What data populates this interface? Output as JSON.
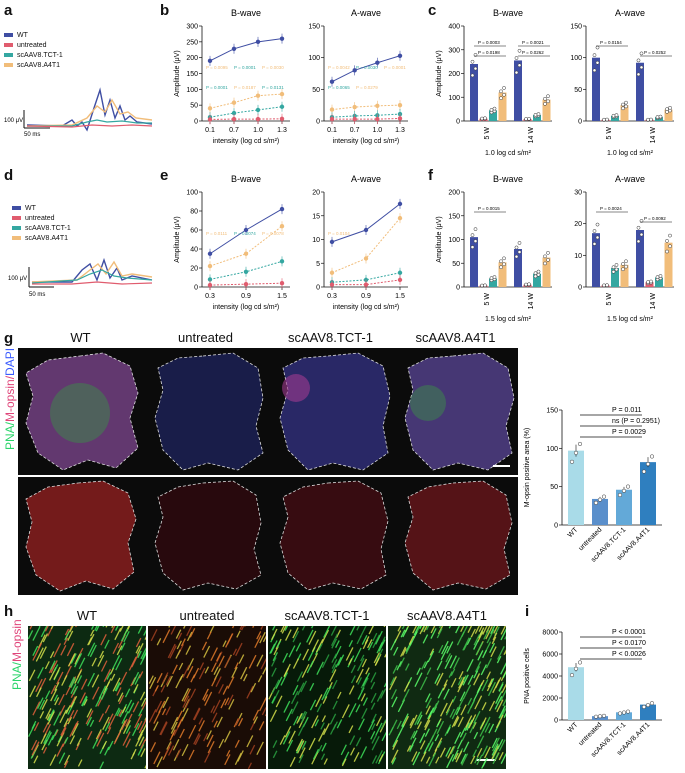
{
  "colors": {
    "wt": "#3f4ea3",
    "untreated": "#e05c6e",
    "tct": "#34a7a1",
    "a4t1": "#f1bd7a",
    "wt_light": "#a9dbe8",
    "untreated_bar": "#5a8fcb",
    "tct_bar": "#63a9d8",
    "a4t1_bar": "#2f7fbf"
  },
  "panels": {
    "a": "a",
    "b": "b",
    "c": "c",
    "d": "d",
    "e": "e",
    "f": "f",
    "g": "g",
    "h": "h",
    "i": "i"
  },
  "legend": [
    "WT",
    "untreated",
    "scAAV8.TCT-1",
    "scAAV8.A4T1"
  ],
  "scale_a": {
    "v": "100 μV",
    "t": "50 ms"
  },
  "scale_d": {
    "v": "100 μV",
    "t": "50 ms"
  },
  "images": {
    "g_cols": [
      "WT",
      "untreated",
      "scAAV8.TCT-1",
      "scAAV8.A4T1"
    ],
    "g_ylabel": [
      "PNA/",
      "M-opsin/",
      "DAPI"
    ],
    "h_cols": [
      "WT",
      "untreated",
      "scAAV8.TCT-1",
      "scAAV8.A4T1"
    ],
    "h_ylabel": [
      "PNA/",
      "M-opsin"
    ]
  },
  "chart_data": [
    {
      "panel": "b-left",
      "type": "line",
      "title": "B-wave",
      "xlabel": "intensity (log cd s/m²)",
      "ylabel": "Amplitude (μV)",
      "x": [
        "0.1",
        "0.7",
        "1.0",
        "1.3"
      ],
      "ylim": [
        0,
        300
      ],
      "yticks": [
        0,
        50,
        100,
        150,
        200,
        250,
        300
      ],
      "series": [
        {
          "name": "WT",
          "values": [
            190,
            228,
            250,
            260
          ]
        },
        {
          "name": "scAAV8.A4T1",
          "values": [
            40,
            58,
            80,
            85
          ]
        },
        {
          "name": "scAAV8.TCT-1",
          "values": [
            12,
            25,
            35,
            45
          ]
        },
        {
          "name": "untreated",
          "values": [
            5,
            6,
            6,
            7
          ]
        }
      ],
      "annotations": [
        "P = 0.0095",
        "P = 0.0001",
        "P = 0.0030",
        "P = 0.0001",
        "P = 0.0187",
        "P = 0.0131"
      ]
    },
    {
      "panel": "b-right",
      "type": "line",
      "title": "A-wave",
      "xlabel": "intensity (log cd s/m²)",
      "x": [
        "0.1",
        "0.7",
        "1.0",
        "1.3"
      ],
      "ylim": [
        0,
        150
      ],
      "yticks": [
        0,
        50,
        100,
        150
      ],
      "series": [
        {
          "name": "WT",
          "values": [
            62,
            80,
            92,
            103
          ]
        },
        {
          "name": "scAAV8.A4T1",
          "values": [
            18,
            22,
            24,
            25
          ]
        },
        {
          "name": "scAAV8.TCT-1",
          "values": [
            6,
            8,
            9,
            11
          ]
        },
        {
          "name": "untreated",
          "values": [
            3,
            3,
            3,
            4
          ]
        }
      ],
      "annotations": [
        "P = 0.0042",
        "P = 0.0030",
        "P = 0.0001",
        "P = 0.0065",
        "P = 0.0279"
      ]
    },
    {
      "panel": "c-left",
      "type": "bar",
      "title": "B-wave",
      "xlabel": "1.0 log cd s/m²",
      "ylabel": "Amplitude (μV)",
      "categories": [
        "5 W",
        "14 W"
      ],
      "ylim": [
        0,
        400
      ],
      "yticks": [
        0,
        100,
        200,
        300,
        400
      ],
      "series": [
        {
          "name": "WT",
          "values": [
            240,
            255
          ]
        },
        {
          "name": "untreated",
          "values": [
            10,
            8
          ]
        },
        {
          "name": "scAAV8.TCT-1",
          "values": [
            45,
            25
          ]
        },
        {
          "name": "scAAV8.A4T1",
          "values": [
            120,
            90
          ]
        }
      ],
      "annotations": [
        "P = 0.0003",
        "P = 0.0198",
        "P = 0.0021",
        "P = 0.0262"
      ]
    },
    {
      "panel": "c-right",
      "type": "bar",
      "title": "A-wave",
      "xlabel": "1.0 log cd s/m²",
      "categories": [
        "5 W",
        "14 W"
      ],
      "ylim": [
        0,
        150
      ],
      "yticks": [
        0,
        50,
        100,
        150
      ],
      "series": [
        {
          "name": "WT",
          "values": [
            100,
            92
          ]
        },
        {
          "name": "untreated",
          "values": [
            2,
            2
          ]
        },
        {
          "name": "scAAV8.TCT-1",
          "values": [
            8,
            6
          ]
        },
        {
          "name": "scAAV8.A4T1",
          "values": [
            25,
            18
          ]
        }
      ],
      "annotations": [
        "P = 0.0154",
        "P = 0.0252"
      ]
    },
    {
      "panel": "e-left",
      "type": "line",
      "title": "B-wave",
      "xlabel": "intensity (log cd s/m²)",
      "ylabel": "Amplitude (μV)",
      "x": [
        "0.3",
        "0.9",
        "1.5"
      ],
      "ylim": [
        0,
        100
      ],
      "yticks": [
        0,
        20,
        40,
        60,
        80,
        100
      ],
      "series": [
        {
          "name": "WT",
          "values": [
            35,
            60,
            82
          ]
        },
        {
          "name": "scAAV8.A4T1",
          "values": [
            22,
            35,
            64
          ]
        },
        {
          "name": "scAAV8.TCT-1",
          "values": [
            8,
            16,
            27
          ]
        },
        {
          "name": "untreated",
          "values": [
            2,
            3,
            4
          ]
        }
      ],
      "annotations": [
        "P = 0.0111",
        "P = 0.0074",
        "P = 0.0078"
      ]
    },
    {
      "panel": "e-right",
      "type": "line",
      "title": "A-wave",
      "xlabel": "intensity (log cd s/m²)",
      "x": [
        "0.3",
        "0.9",
        "1.5"
      ],
      "ylim": [
        0,
        20
      ],
      "yticks": [
        0,
        5,
        10,
        15,
        20
      ],
      "series": [
        {
          "name": "WT",
          "values": [
            9.5,
            12,
            17.5
          ]
        },
        {
          "name": "scAAV8.A4T1",
          "values": [
            3,
            6,
            14.5
          ]
        },
        {
          "name": "scAAV8.TCT-1",
          "values": [
            1,
            1.5,
            3
          ]
        },
        {
          "name": "untreated",
          "values": [
            0.5,
            0.5,
            1.5
          ]
        }
      ],
      "annotations": [
        "P = 0.0104"
      ]
    },
    {
      "panel": "f-left",
      "type": "bar",
      "title": "B-wave",
      "xlabel": "1.5 log cd s/m²",
      "ylabel": "Amplitude (μV)",
      "categories": [
        "5 W",
        "14 W"
      ],
      "ylim": [
        0,
        200
      ],
      "yticks": [
        0,
        50,
        100,
        150,
        200
      ],
      "series": [
        {
          "name": "WT",
          "values": [
            105,
            80
          ]
        },
        {
          "name": "untreated",
          "values": [
            3,
            5
          ]
        },
        {
          "name": "scAAV8.TCT-1",
          "values": [
            18,
            28
          ]
        },
        {
          "name": "scAAV8.A4T1",
          "values": [
            52,
            62
          ]
        }
      ],
      "annotations": [
        "P = 0.0015"
      ]
    },
    {
      "panel": "f-right",
      "type": "bar",
      "title": "A-wave",
      "xlabel": "1.5 log cd s/m²",
      "categories": [
        "5 W",
        "14 W"
      ],
      "ylim": [
        0,
        30
      ],
      "yticks": [
        0,
        10,
        20,
        30
      ],
      "series": [
        {
          "name": "WT",
          "values": [
            17,
            18
          ]
        },
        {
          "name": "untreated",
          "values": [
            0.5,
            1.5
          ]
        },
        {
          "name": "scAAV8.TCT-1",
          "values": [
            6,
            3
          ]
        },
        {
          "name": "scAAV8.A4T1",
          "values": [
            7,
            14
          ]
        }
      ],
      "annotations": [
        "P = 0.0024",
        "P = 0.0092"
      ]
    },
    {
      "panel": "g-bar",
      "type": "bar",
      "ylabel": "M-opsin positive area (%)",
      "categories": [
        "WT",
        "untreated",
        "scAAV8.TCT-1",
        "scAAV8.A4T1"
      ],
      "values": [
        97,
        34,
        46,
        82
      ],
      "ylim": [
        0,
        150
      ],
      "yticks": [
        0,
        50,
        100,
        150
      ],
      "annotations": [
        "P = 0.011",
        "ns (P = 0.2951)",
        "P = 0.0029"
      ]
    },
    {
      "panel": "i-bar",
      "type": "bar",
      "ylabel": "PNA positive cells",
      "categories": [
        "WT",
        "untreated",
        "scAAV8.TCT-1",
        "scAAV8.A4T1"
      ],
      "values": [
        4800,
        350,
        700,
        1400
      ],
      "ylim": [
        0,
        8000
      ],
      "yticks": [
        0,
        2000,
        4000,
        6000,
        8000
      ],
      "annotations": [
        "P < 0.0001",
        "P < 0.0170",
        "P < 0.0026"
      ]
    }
  ]
}
